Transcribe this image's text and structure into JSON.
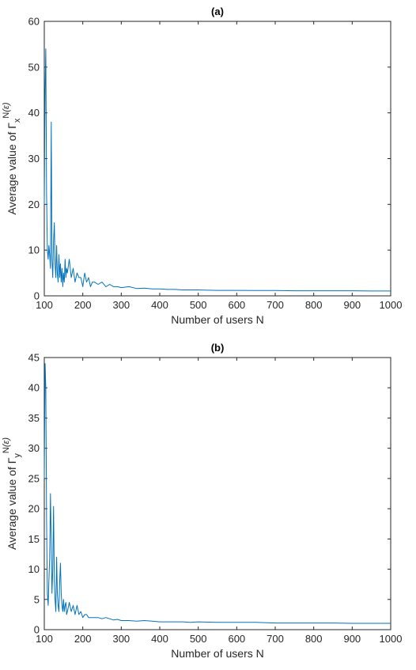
{
  "chart_data": [
    {
      "type": "line",
      "title": "(a)",
      "xlabel": "Number of users N",
      "ylabel_prefix": "Average value of Γ",
      "ylabel_sub": "x",
      "ylabel_sup": "N",
      "ylabel_sup_arg": "(ε)",
      "xlim": [
        100,
        1000
      ],
      "ylim": [
        0,
        60
      ],
      "xticks": [
        100,
        200,
        300,
        400,
        500,
        600,
        700,
        800,
        900,
        1000
      ],
      "yticks": [
        0,
        10,
        20,
        30,
        40,
        50,
        60
      ],
      "grid": false,
      "color": "#0072BD",
      "series": [
        {
          "x": [
            100,
            102,
            104,
            106,
            108,
            110,
            112,
            114,
            116,
            118,
            120,
            122,
            124,
            126,
            128,
            130,
            132,
            134,
            136,
            138,
            140,
            142,
            144,
            146,
            148,
            150,
            152,
            154,
            156,
            158,
            160,
            165,
            170,
            175,
            180,
            185,
            190,
            195,
            200,
            205,
            210,
            215,
            220,
            225,
            230,
            240,
            250,
            260,
            270,
            280,
            290,
            300,
            320,
            340,
            360,
            380,
            400,
            420,
            440,
            460,
            480,
            500,
            550,
            600,
            650,
            700,
            750,
            800,
            850,
            900,
            950,
            1000
          ],
          "y": [
            20,
            45,
            54,
            22,
            10,
            8,
            11,
            9,
            6,
            38,
            8,
            4,
            12,
            16,
            7,
            4,
            11,
            5,
            3,
            9,
            4,
            7,
            3,
            6,
            2,
            5,
            3,
            8,
            4,
            6,
            5,
            8,
            4,
            6,
            3,
            5,
            4,
            4,
            2,
            5,
            3,
            4,
            2,
            3,
            3,
            2.5,
            3,
            2,
            2.5,
            2,
            2,
            1.8,
            2,
            1.6,
            1.7,
            1.5,
            1.5,
            1.4,
            1.4,
            1.3,
            1.3,
            1.3,
            1.2,
            1.2,
            1.15,
            1.15,
            1.1,
            1.1,
            1.1,
            1.1,
            1.05,
            1.05
          ]
        }
      ]
    },
    {
      "type": "line",
      "title": "(b)",
      "xlabel": "Number of users N",
      "ylabel_prefix": "Average value of Γ",
      "ylabel_sub": "y",
      "ylabel_sup": "N",
      "ylabel_sup_arg": "(ε)",
      "xlim": [
        100,
        1000
      ],
      "ylim": [
        0,
        45
      ],
      "xticks": [
        100,
        200,
        300,
        400,
        500,
        600,
        700,
        800,
        900,
        1000
      ],
      "yticks": [
        0,
        5,
        10,
        15,
        20,
        25,
        30,
        35,
        40,
        45
      ],
      "grid": false,
      "color": "#0072BD",
      "series": [
        {
          "x": [
            100,
            102,
            104,
            106,
            108,
            110,
            112,
            114,
            116,
            118,
            120,
            122,
            124,
            126,
            128,
            130,
            132,
            134,
            136,
            138,
            140,
            142,
            144,
            146,
            148,
            150,
            152,
            154,
            156,
            158,
            160,
            165,
            170,
            175,
            180,
            185,
            190,
            195,
            200,
            205,
            210,
            215,
            220,
            225,
            230,
            240,
            250,
            260,
            270,
            280,
            290,
            300,
            320,
            340,
            360,
            380,
            400,
            420,
            440,
            460,
            480,
            500,
            550,
            600,
            650,
            700,
            750,
            800,
            850,
            900,
            950,
            1000
          ],
          "y": [
            25,
            44,
            40,
            18,
            6,
            4,
            8,
            12,
            22.5,
            14,
            6,
            10,
            20.4,
            8,
            5,
            3,
            12,
            6,
            4,
            3,
            8,
            11,
            6,
            4,
            3,
            5,
            3,
            4,
            4.5,
            2.5,
            3,
            4.5,
            3,
            4,
            2.5,
            4,
            2.5,
            3,
            2,
            2.5,
            2.5,
            2,
            2,
            2,
            2,
            2,
            1.8,
            2,
            1.8,
            1.6,
            1.7,
            1.5,
            1.5,
            1.4,
            1.5,
            1.4,
            1.3,
            1.3,
            1.3,
            1.3,
            1.2,
            1.3,
            1.2,
            1.2,
            1.2,
            1.1,
            1.1,
            1.1,
            1.1,
            1.05,
            1.05,
            1.05
          ]
        }
      ]
    }
  ]
}
